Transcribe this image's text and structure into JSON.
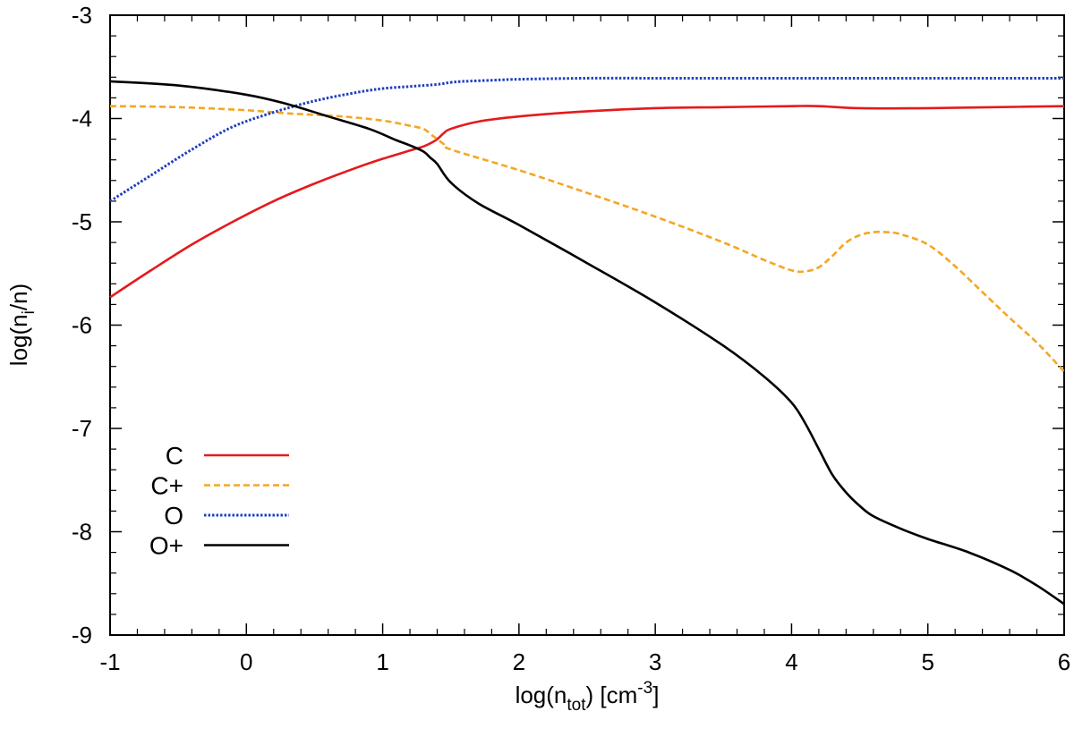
{
  "chart_data": {
    "type": "line",
    "xlabel": "log(n",
    "xlabel_sub": "tot",
    "xlabel_tail": ") [cm",
    "xlabel_sup": "-3",
    "xlabel_end": "]",
    "ylabel": "log(n",
    "ylabel_sub": "i",
    "ylabel_end": "/n)",
    "xlim": [
      -1,
      6
    ],
    "ylim": [
      -9,
      -3
    ],
    "x_ticks": [
      "-1",
      "0",
      "1",
      "2",
      "3",
      "4",
      "5",
      "6"
    ],
    "y_ticks": [
      "-3",
      "-4",
      "-5",
      "-6",
      "-7",
      "-8",
      "-9"
    ],
    "legend_position": "bottom-left",
    "series": [
      {
        "name": "C",
        "color": "#e41a1c",
        "dash": "solid",
        "x": [
          -1,
          -0.7,
          -0.4,
          -0.1,
          0.2,
          0.5,
          0.8,
          1.0,
          1.2,
          1.3,
          1.35,
          1.4,
          1.45,
          1.5,
          1.7,
          2.0,
          2.5,
          3.0,
          3.5,
          4.0,
          4.2,
          4.5,
          5.0,
          5.5,
          6.0
        ],
        "values": [
          -5.73,
          -5.47,
          -5.22,
          -5.0,
          -4.8,
          -4.63,
          -4.48,
          -4.39,
          -4.31,
          -4.27,
          -4.24,
          -4.2,
          -4.14,
          -4.1,
          -4.03,
          -3.98,
          -3.93,
          -3.9,
          -3.89,
          -3.88,
          -3.88,
          -3.9,
          -3.9,
          -3.89,
          -3.88
        ]
      },
      {
        "name": "C+",
        "color": "#f5a623",
        "dash": "dashed",
        "x": [
          -1,
          -0.5,
          0.0,
          0.3,
          0.7,
          1.0,
          1.2,
          1.3,
          1.35,
          1.4,
          1.45,
          1.5,
          2.0,
          2.5,
          3.0,
          3.5,
          3.8,
          4.0,
          4.1,
          4.2,
          4.3,
          4.4,
          4.5,
          4.6,
          4.7,
          4.8,
          5.0,
          5.2,
          5.4,
          5.6,
          5.8,
          6.0
        ],
        "values": [
          -3.88,
          -3.89,
          -3.92,
          -3.95,
          -3.98,
          -4.02,
          -4.07,
          -4.1,
          -4.15,
          -4.2,
          -4.25,
          -4.3,
          -4.5,
          -4.72,
          -4.95,
          -5.2,
          -5.37,
          -5.47,
          -5.48,
          -5.44,
          -5.33,
          -5.2,
          -5.13,
          -5.1,
          -5.1,
          -5.12,
          -5.22,
          -5.43,
          -5.68,
          -5.93,
          -6.17,
          -6.45
        ]
      },
      {
        "name": "O",
        "color": "#1f3fbf",
        "dash": "dotted",
        "x": [
          -1,
          -0.7,
          -0.4,
          -0.1,
          0.2,
          0.5,
          0.8,
          1.0,
          1.2,
          1.4,
          1.5,
          1.6,
          1.8,
          2.0,
          2.5,
          3.0,
          4.0,
          5.0,
          6.0
        ],
        "values": [
          -4.8,
          -4.55,
          -4.3,
          -4.08,
          -3.94,
          -3.83,
          -3.75,
          -3.71,
          -3.69,
          -3.67,
          -3.65,
          -3.64,
          -3.63,
          -3.62,
          -3.61,
          -3.61,
          -3.61,
          -3.61,
          -3.61
        ]
      },
      {
        "name": "O+",
        "color": "#000000",
        "dash": "solid",
        "x": [
          -1,
          -0.5,
          0.0,
          0.3,
          0.6,
          0.9,
          1.1,
          1.2,
          1.3,
          1.35,
          1.4,
          1.5,
          1.7,
          2.0,
          2.5,
          3.0,
          3.5,
          3.8,
          4.0,
          4.1,
          4.2,
          4.3,
          4.4,
          4.5,
          4.6,
          4.8,
          5.0,
          5.3,
          5.6,
          5.8,
          6.0
        ],
        "values": [
          -3.64,
          -3.68,
          -3.77,
          -3.86,
          -3.98,
          -4.1,
          -4.21,
          -4.26,
          -4.32,
          -4.38,
          -4.44,
          -4.62,
          -4.82,
          -5.03,
          -5.4,
          -5.78,
          -6.2,
          -6.5,
          -6.75,
          -6.95,
          -7.2,
          -7.45,
          -7.62,
          -7.75,
          -7.85,
          -7.97,
          -8.07,
          -8.2,
          -8.37,
          -8.52,
          -8.7
        ]
      }
    ]
  }
}
